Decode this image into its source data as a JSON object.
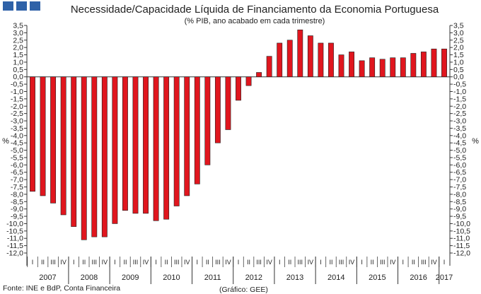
{
  "header": {
    "logo_blocks": 3,
    "logo_color": "#2f62a8"
  },
  "chart_data": {
    "type": "bar",
    "title": "Necessidade/Capacidade Líquida de Financiamento da Economia Portuguesa",
    "subtitle": "(% PIB, ano acabado em cada trimestre)",
    "ylabel_left": "%",
    "ylabel_right": "%",
    "ylim": [
      -12.0,
      3.5
    ],
    "ytick_step": 0.5,
    "bar_color": "#e0161e",
    "bar_edge_color": "#222222",
    "quarter_labels": [
      "I",
      "II",
      "III",
      "IV"
    ],
    "years": [
      "2007",
      "2008",
      "2009",
      "2010",
      "2011",
      "2012",
      "2013",
      "2014",
      "2015",
      "2016",
      "2017"
    ],
    "categories": [
      "2007 I",
      "2007 II",
      "2007 III",
      "2007 IV",
      "2008 I",
      "2008 II",
      "2008 III",
      "2008 IV",
      "2009 I",
      "2009 II",
      "2009 III",
      "2009 IV",
      "2010 I",
      "2010 II",
      "2010 III",
      "2010 IV",
      "2011 I",
      "2011 II",
      "2011 III",
      "2011 IV",
      "2012 I",
      "2012 II",
      "2012 III",
      "2012 IV",
      "2013 I",
      "2013 II",
      "2013 III",
      "2013 IV",
      "2014 I",
      "2014 II",
      "2014 III",
      "2014 IV",
      "2015 I",
      "2015 II",
      "2015 III",
      "2015 IV",
      "2016 I",
      "2016 II",
      "2016 III",
      "2016 IV",
      "2017 I"
    ],
    "values": [
      -7.8,
      -8.1,
      -8.6,
      -9.4,
      -10.2,
      -11.1,
      -10.9,
      -10.9,
      -10.0,
      -9.1,
      -9.3,
      -9.3,
      -9.8,
      -9.7,
      -8.8,
      -8.1,
      -7.3,
      -6.0,
      -4.5,
      -3.6,
      -1.6,
      -0.6,
      0.3,
      1.4,
      2.3,
      2.5,
      3.2,
      2.8,
      2.3,
      2.3,
      1.5,
      1.7,
      1.1,
      1.3,
      1.2,
      1.3,
      1.3,
      1.6,
      1.7,
      1.9,
      1.9
    ]
  },
  "footer": {
    "source": "Fonte: INE e BdP, Conta Financeira",
    "credit": "(Gráfico: GEE)"
  }
}
